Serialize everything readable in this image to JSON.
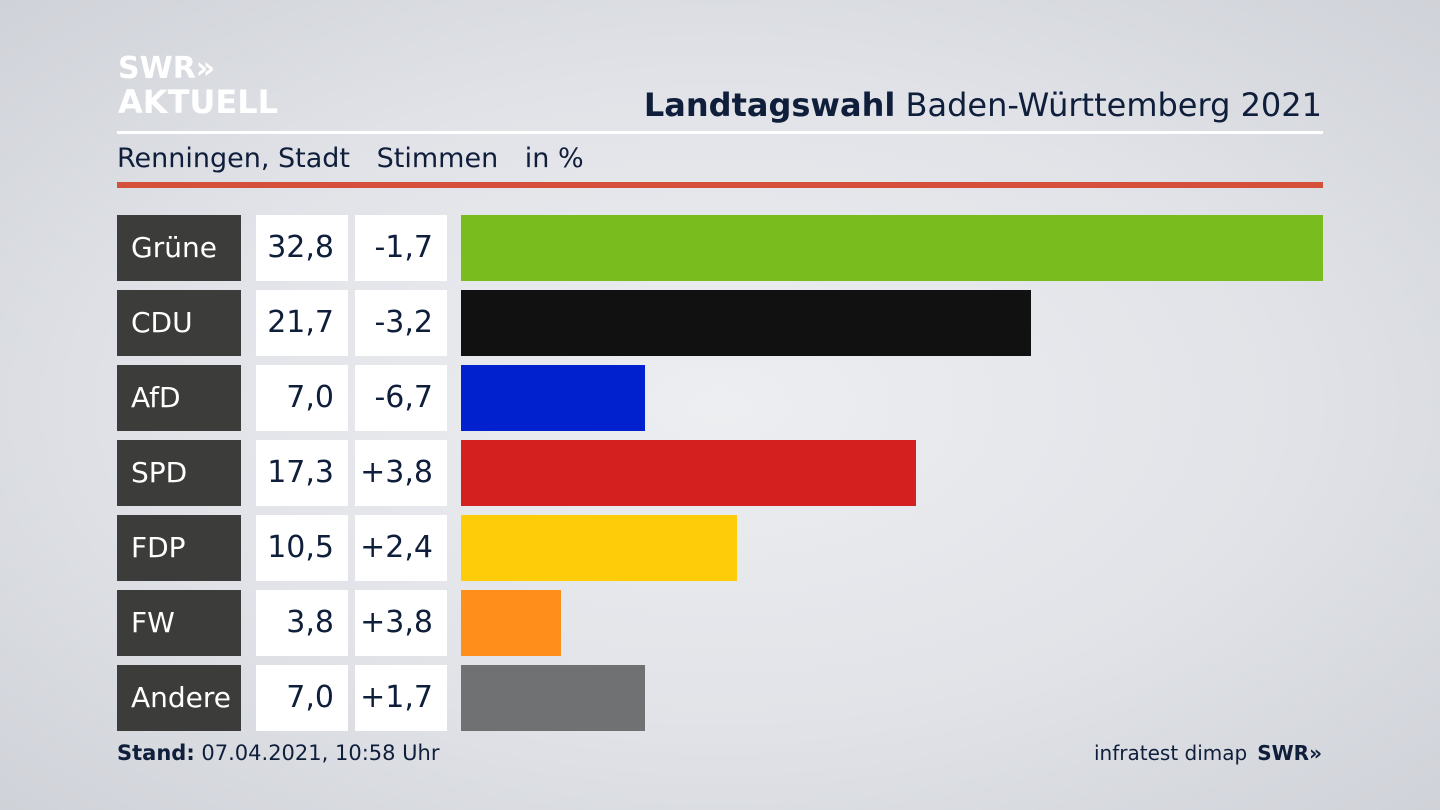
{
  "logo": {
    "line1": "SWR»",
    "line2": "AKTUELL"
  },
  "header": {
    "title_bold": "Landtagswahl",
    "title_rest": " Baden-Württemberg 2021",
    "location": "Renningen, Stadt",
    "metric": "Stimmen",
    "unit": "in %"
  },
  "chart_data": {
    "type": "bar",
    "orientation": "horizontal",
    "categories": [
      "Grüne",
      "CDU",
      "AfD",
      "SPD",
      "FDP",
      "FW",
      "Andere"
    ],
    "values": [
      32.8,
      21.7,
      7.0,
      17.3,
      10.5,
      3.8,
      7.0
    ],
    "values_display": [
      "32,8",
      "21,7",
      "7,0",
      "17,3",
      "10,5",
      "3,8",
      "7,0"
    ],
    "change_display": [
      "-1,7",
      "-3,2",
      "-6,7",
      "+3,8",
      "+2,4",
      "+3,8",
      "+1,7"
    ],
    "colors": [
      "#78bd1d",
      "#111111",
      "#0021cd",
      "#d52020",
      "#ffcc0a",
      "#ff8e1a",
      "#707173"
    ],
    "xlim": [
      0,
      32.8
    ],
    "grid": false
  },
  "footer": {
    "stand_label": "Stand:",
    "stand_value": " 07.04.2021, 10:58 Uhr",
    "source": "infratest dimap",
    "brand": "SWR»"
  }
}
